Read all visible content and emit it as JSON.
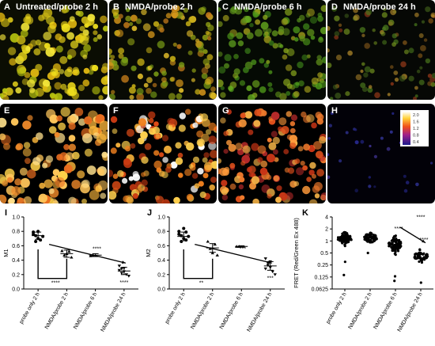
{
  "figure": {
    "image_panels": [
      {
        "letter": "A",
        "title": "Untreated/probe 2 h",
        "style": "fluor-yellow"
      },
      {
        "letter": "B",
        "title": "NMDA/probe 2 h",
        "style": "fluor-mixed"
      },
      {
        "letter": "C",
        "title": "NMDA/probe 6 h",
        "style": "fluor-green"
      },
      {
        "letter": "D",
        "title": "NMDA/probe 24 h",
        "style": "fluor-sparse"
      },
      {
        "letter": "E",
        "title": "",
        "style": "heat-dense"
      },
      {
        "letter": "F",
        "title": "",
        "style": "heat-mixed"
      },
      {
        "letter": "G",
        "title": "",
        "style": "heat-red"
      },
      {
        "letter": "H",
        "title": "",
        "style": "heat-blue"
      }
    ],
    "colorbar_ticks": [
      "2.0",
      "1.6",
      "1.2",
      "0.8",
      "0.4"
    ]
  },
  "chart_data": [
    {
      "letter": "I",
      "type": "scatter",
      "ylabel": "M1",
      "ylim": [
        0,
        1.0
      ],
      "yticks": [
        "0.0",
        "0.2",
        "0.4",
        "0.6",
        "0.8",
        "1.0"
      ],
      "categories": [
        "probe only 2 h",
        "NMDA/probe 2 h",
        "NMDA/probe 6 h",
        "NMDA/probe 24 h"
      ],
      "points": [
        [
          0.79,
          0.74,
          0.7,
          0.68,
          0.73,
          0.76,
          0.66,
          0.8
        ],
        [
          0.53,
          0.47,
          0.49,
          0.52,
          0.44
        ],
        [
          0.46,
          0.47
        ],
        [
          0.32,
          0.28,
          0.24,
          0.2,
          0.18,
          0.26,
          0.22,
          0.29
        ]
      ],
      "means": [
        0.74,
        0.49,
        0.47,
        0.25
      ],
      "errors": [
        0.05,
        0.05,
        0.02,
        0.05
      ],
      "stars_below": [
        "",
        "",
        "",
        "****"
      ],
      "bracket": {
        "from": 0,
        "to": 1,
        "label": "****"
      },
      "trend": {
        "from": 0,
        "to": 3,
        "label": "****"
      }
    },
    {
      "letter": "J",
      "type": "scatter",
      "ylabel": "M2",
      "ylim": [
        0,
        1.0
      ],
      "yticks": [
        "0.0",
        "0.2",
        "0.4",
        "0.6",
        "0.8",
        "1.0"
      ],
      "categories": [
        "probe only 2 h",
        "NMDA/probe 2 h",
        "NMDA/probe 6 h",
        "NMDA/probe 24 h"
      ],
      "points": [
        [
          0.8,
          0.74,
          0.7,
          0.68,
          0.73,
          0.76,
          0.66,
          0.84,
          0.79
        ],
        [
          0.66,
          0.56,
          0.5,
          0.62,
          0.47
        ],
        [
          0.59,
          0.59
        ],
        [
          0.42,
          0.36,
          0.3,
          0.24,
          0.2,
          0.28,
          0.33,
          0.38
        ]
      ],
      "means": [
        0.73,
        0.57,
        0.59,
        0.32
      ],
      "errors": [
        0.06,
        0.06,
        0.01,
        0.06
      ],
      "stars_below": [
        "",
        "",
        "",
        "***"
      ],
      "bracket": {
        "from": 0,
        "to": 1,
        "label": "**"
      },
      "trend": {
        "from": 0,
        "to": 3,
        "label": "***"
      }
    },
    {
      "letter": "K",
      "type": "scatter",
      "ylabel": "FRET (Red/Green Ex 488)",
      "log_scale": true,
      "ylim": [
        0.0625,
        4
      ],
      "yticks": [
        "0.0625",
        "0.125",
        "0.25",
        "0.5",
        "1",
        "2",
        "4"
      ],
      "categories": [
        "probe only 2 h",
        "NMDA/probe 2 h",
        "NMDA/probe 6 h",
        "NMDA/probe 24 h"
      ],
      "groups": [
        {
          "center": 1.15,
          "spread": 0.7,
          "n": 80,
          "outliers": [
            0.14,
            0.3
          ]
        },
        {
          "center": 1.2,
          "spread": 0.6,
          "n": 80,
          "outliers": [
            0.5
          ]
        },
        {
          "center": 0.8,
          "spread": 0.9,
          "n": 80,
          "outliers": [
            0.1,
            0.13
          ]
        },
        {
          "center": 0.42,
          "spread": 0.7,
          "n": 50,
          "outliers": [
            0.09
          ]
        }
      ],
      "stars_above": [
        "",
        "",
        "****",
        "****"
      ],
      "trend": {
        "from": 2,
        "to": 3,
        "label": "****"
      }
    }
  ]
}
